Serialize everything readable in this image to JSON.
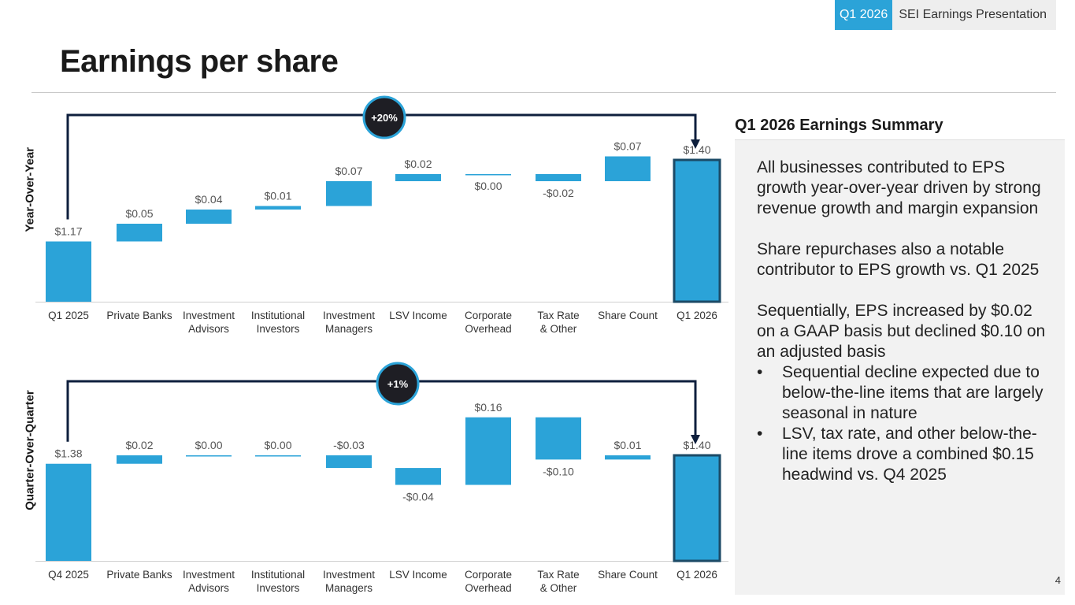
{
  "header": {
    "quarter_tag": "Q1 2026",
    "presentation_title": "SEI Earnings Presentation"
  },
  "page_title": "Earnings per share",
  "page_number": "4",
  "summary": {
    "heading": "Q1 2026 Earnings Summary",
    "paragraphs": [
      "All businesses contributed to EPS growth year-over-year driven by strong revenue growth and margin expansion",
      "Share repurchases also a notable contributor to EPS growth vs. Q1 2025",
      "Sequentially, EPS increased by $0.02 on a GAAP basis but declined $0.10 on an adjusted basis"
    ],
    "bullets": [
      "Sequential decline expected due to below-the-line items that are largely seasonal in nature",
      "LSV, tax rate, and other below-the-line items drove a combined $0.15 headwind vs. Q4 2025"
    ]
  },
  "colors": {
    "bar": "#2ba3d8",
    "total_outline": "#1b4a66",
    "bracket": "#0e1f3d",
    "badge": "#1e1e24",
    "badge_ring": "#2ba3d8"
  },
  "chart_data": [
    {
      "type": "waterfall",
      "ylabel": "Year-Over-Year",
      "badge": "+20%",
      "categories": [
        "Q1 2025",
        "Private Banks",
        "Investment\nAdvisors",
        "Institutional\nInvestors",
        "Investment\nManagers",
        "LSV Income",
        "Corporate\nOverhead",
        "Tax Rate\n& Other",
        "Share Count",
        "Q1 2026"
      ],
      "start_value": 1.17,
      "deltas": [
        0.05,
        0.04,
        0.01,
        0.07,
        0.02,
        0.0,
        -0.02,
        0.07
      ],
      "end_value": 1.4,
      "labels": [
        "$1.17",
        "$0.05",
        "$0.04",
        "$0.01",
        "$0.07",
        "$0.02",
        "$0.00",
        "-$0.02",
        "$0.07",
        "$1.40"
      ],
      "label_side": [
        "above",
        "above",
        "above",
        "above",
        "above",
        "above",
        "below",
        "below",
        "above",
        "above"
      ],
      "ylim": [
        1.0,
        1.45
      ]
    },
    {
      "type": "waterfall",
      "ylabel": "Quarter-Over-Quarter",
      "badge": "+1%",
      "categories": [
        "Q4 2025",
        "Private Banks",
        "Investment\nAdvisors",
        "Institutional\nInvestors",
        "Investment\nManagers",
        "LSV Income",
        "Corporate\nOverhead",
        "Tax Rate\n& Other",
        "Share Count",
        "Q1 2026"
      ],
      "start_value": 1.38,
      "deltas": [
        0.02,
        0.0,
        0.0,
        -0.03,
        -0.04,
        0.16,
        -0.1,
        0.01
      ],
      "end_value": 1.4,
      "labels": [
        "$1.38",
        "$0.02",
        "$0.00",
        "$0.00",
        "-$0.03",
        "-$0.04",
        "$0.16",
        "-$0.10",
        "$0.01",
        "$1.40"
      ],
      "label_side": [
        "above",
        "above",
        "above",
        "above",
        "above",
        "below",
        "above",
        "below",
        "above",
        "above"
      ],
      "ylim": [
        1.15,
        1.55
      ]
    }
  ]
}
